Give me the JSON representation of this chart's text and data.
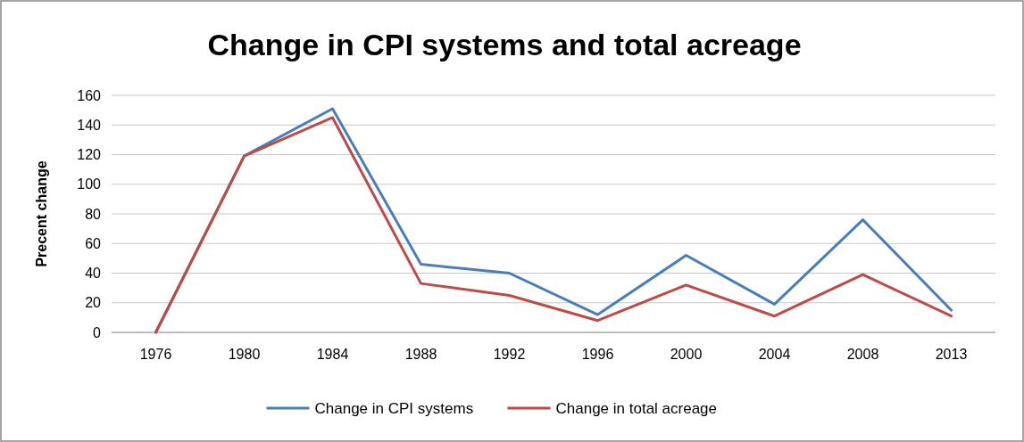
{
  "chart_data": {
    "type": "line",
    "title": "Change in CPI systems and total acreage",
    "ylabel": "Precent change",
    "categories": [
      "1976",
      "1980",
      "1984",
      "1988",
      "1992",
      "1996",
      "2000",
      "2004",
      "2008",
      "2013"
    ],
    "series": [
      {
        "name": "Change in CPI systems",
        "color": "#4a7ebb",
        "values": [
          0,
          119,
          151,
          46,
          40,
          12,
          52,
          19,
          76,
          15
        ]
      },
      {
        "name": "Change in total acreage",
        "color": "#be4b48",
        "values": [
          0,
          119,
          145,
          33,
          25,
          8,
          32,
          11,
          39,
          11
        ]
      }
    ],
    "ylim": [
      0,
      160
    ],
    "yticks": [
      0,
      20,
      40,
      60,
      80,
      100,
      120,
      140,
      160
    ],
    "grid": "y",
    "legend": "bottom",
    "marker": "none",
    "line_style": "solid"
  }
}
